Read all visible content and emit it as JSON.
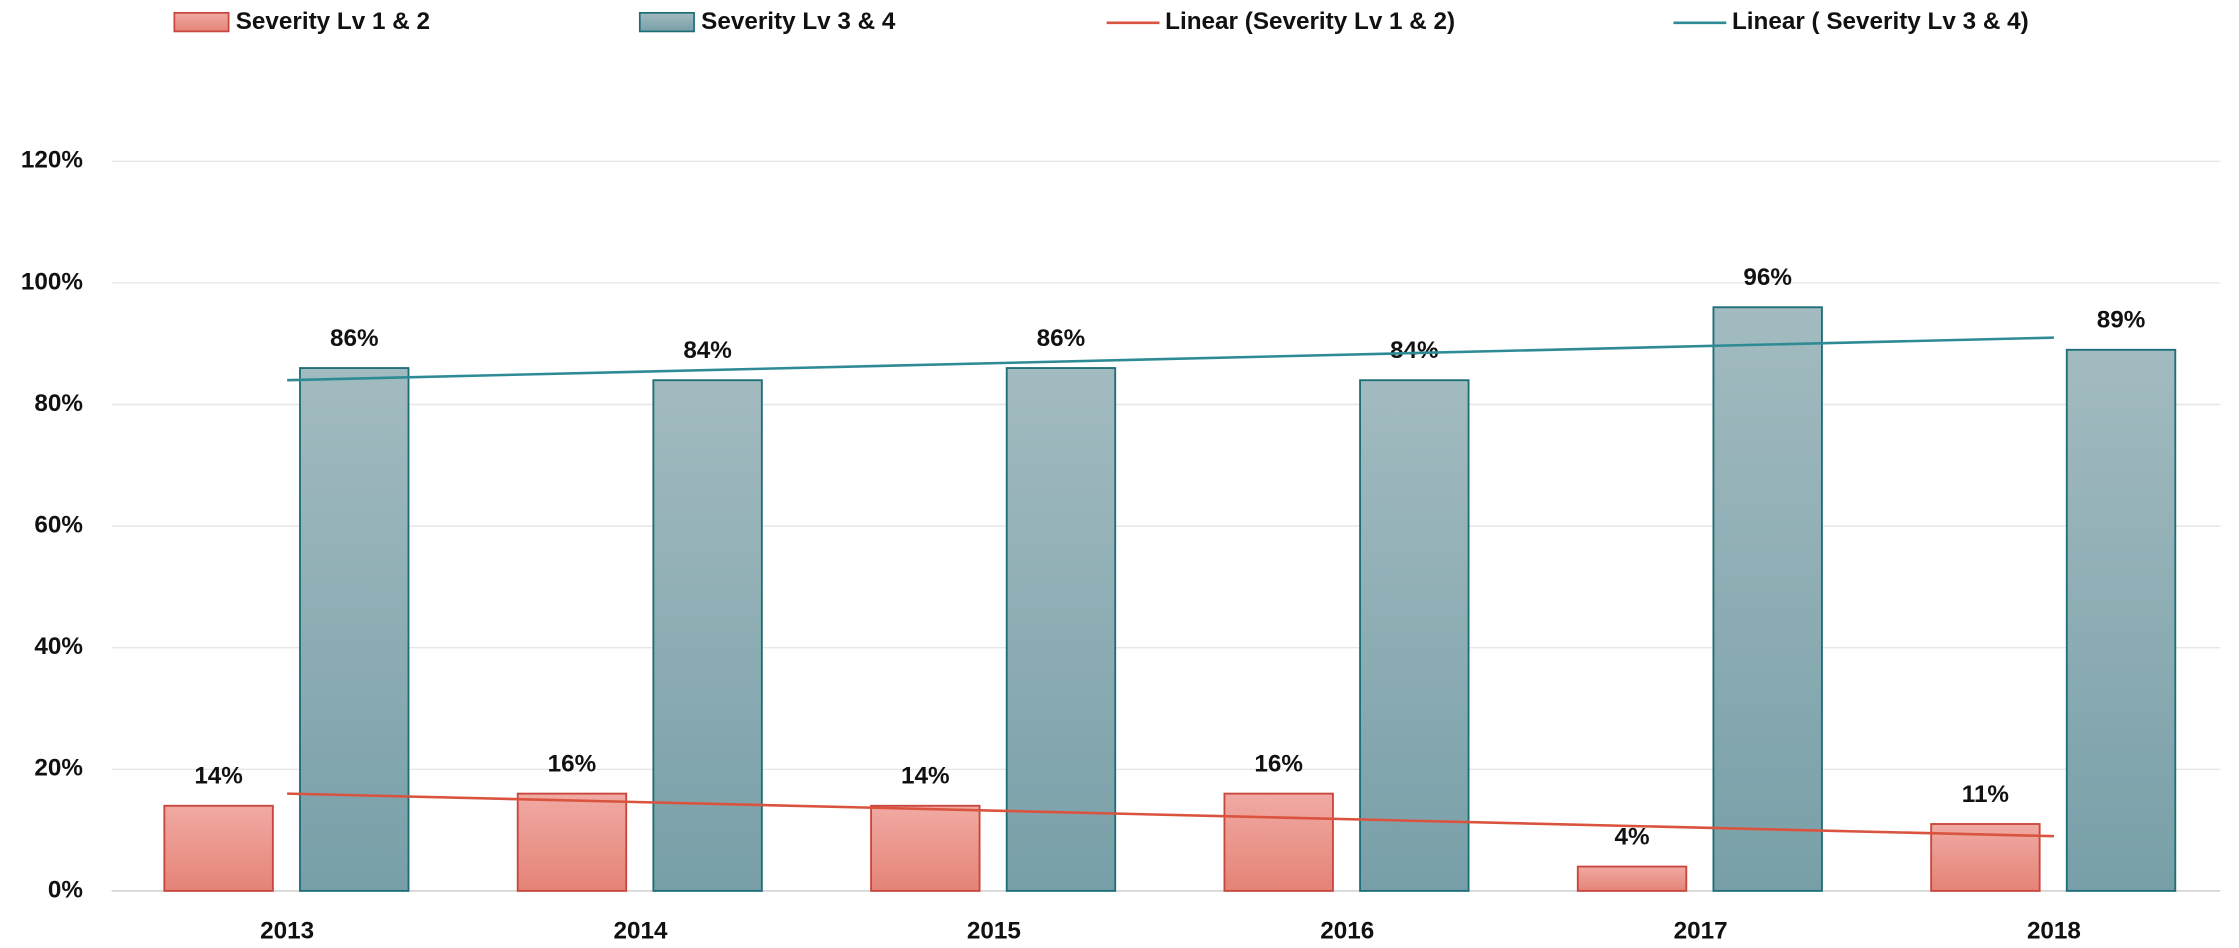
{
  "chart_data": {
    "type": "bar",
    "categories": [
      "2013",
      "2014",
      "2015",
      "2016",
      "2017",
      "2018"
    ],
    "series": [
      {
        "name": "Severity Lv 1 & 2",
        "color": "#e58377",
        "values": [
          14,
          16,
          14,
          16,
          4,
          11
        ],
        "value_labels": [
          "14%",
          "16%",
          "14%",
          "16%",
          "4%",
          "11%"
        ]
      },
      {
        "name": "Severity Lv 3 & 4",
        "color": "#789fa8",
        "values": [
          86,
          84,
          86,
          84,
          96,
          89
        ],
        "value_labels": [
          "86%",
          "84%",
          "86%",
          "84%",
          "96%",
          "89%"
        ]
      }
    ],
    "trendlines": [
      {
        "name": "Linear (Severity Lv 1 & 2)",
        "series": 0,
        "color": "#d9533f"
      },
      {
        "name": "Linear ( Severity Lv 3 & 4)",
        "series": 1,
        "color": "#2e8b95"
      }
    ],
    "ylim": [
      0,
      120
    ],
    "yticks": [
      {
        "value": 0,
        "label": "0%"
      },
      {
        "value": 20,
        "label": "20%"
      },
      {
        "value": 40,
        "label": "40%"
      },
      {
        "value": 60,
        "label": "60%"
      },
      {
        "value": 80,
        "label": "80%"
      },
      {
        "value": 100,
        "label": "100%"
      },
      {
        "value": 120,
        "label": "120%"
      }
    ],
    "grid": true,
    "legend": "top"
  }
}
